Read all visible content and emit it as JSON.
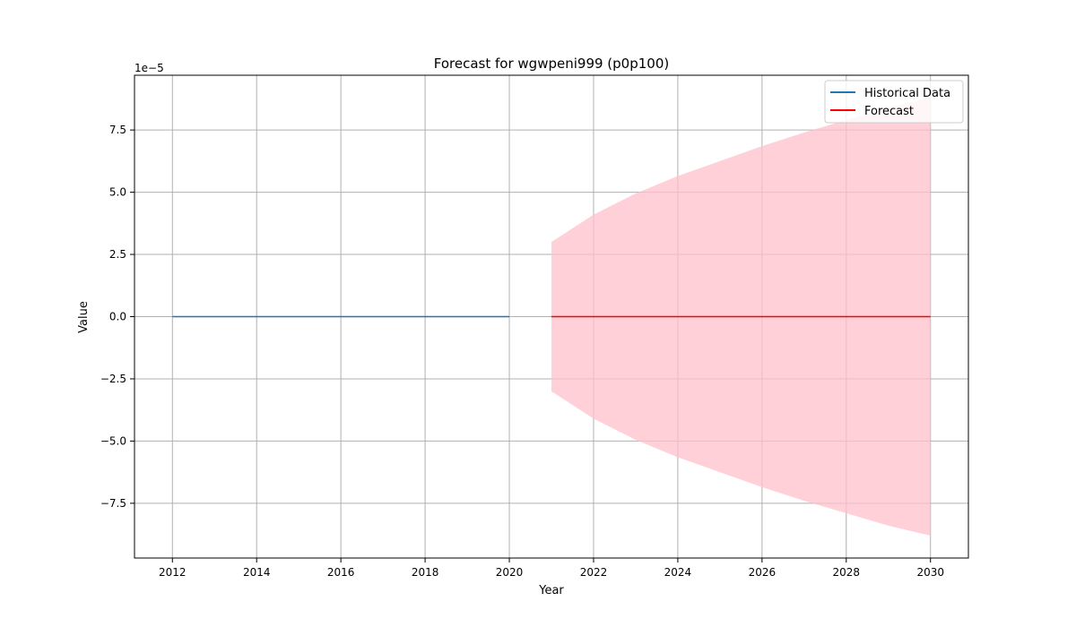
{
  "chart_data": {
    "type": "line",
    "title": "Forecast for wgwpeni999 (p0p100)",
    "xlabel": "Year",
    "ylabel": "Value",
    "y_offset_label": "1e−5",
    "y_scale": 1e-05,
    "xlim": [
      2011.1,
      2030.9
    ],
    "ylim": [
      -9.7e-05,
      9.7e-05
    ],
    "x_ticks": [
      2012,
      2014,
      2016,
      2018,
      2020,
      2022,
      2024,
      2026,
      2028,
      2030
    ],
    "y_ticks": [
      -7.5e-05,
      -5e-05,
      -2.5e-05,
      0,
      2.5e-05,
      5e-05,
      7.5e-05
    ],
    "x_tick_labels": [
      "2012",
      "2014",
      "2016",
      "2018",
      "2020",
      "2022",
      "2024",
      "2026",
      "2028",
      "2030"
    ],
    "y_tick_labels": [
      "−7.5",
      "−5.0",
      "−2.5",
      "0.0",
      "2.5",
      "5.0",
      "7.5"
    ],
    "grid": true,
    "legend_position": "top-right",
    "series": [
      {
        "name": "Historical Data",
        "color": "#1f77b4",
        "x": [
          2012,
          2013,
          2014,
          2015,
          2016,
          2017,
          2018,
          2019,
          2020
        ],
        "y": [
          0,
          0,
          0,
          0,
          0,
          0,
          0,
          0,
          0
        ]
      },
      {
        "name": "Forecast",
        "color": "#ff0000",
        "x": [
          2021,
          2022,
          2023,
          2024,
          2025,
          2026,
          2027,
          2028,
          2029,
          2030
        ],
        "y": [
          0,
          0,
          0,
          0,
          0,
          0,
          0,
          0,
          0,
          0
        ]
      }
    ],
    "confidence_band": {
      "color": "#ffc0cb",
      "opacity": 0.75,
      "x": [
        2021,
        2022,
        2023,
        2024,
        2025,
        2026,
        2027,
        2028,
        2029,
        2030
      ],
      "lower": [
        -3e-05,
        -4.1e-05,
        -4.95e-05,
        -5.65e-05,
        -6.25e-05,
        -6.85e-05,
        -7.4e-05,
        -7.9e-05,
        -8.4e-05,
        -8.8e-05
      ],
      "upper": [
        3e-05,
        4.1e-05,
        4.95e-05,
        5.65e-05,
        6.25e-05,
        6.85e-05,
        7.4e-05,
        7.9e-05,
        8.4e-05,
        8.8e-05
      ]
    }
  }
}
